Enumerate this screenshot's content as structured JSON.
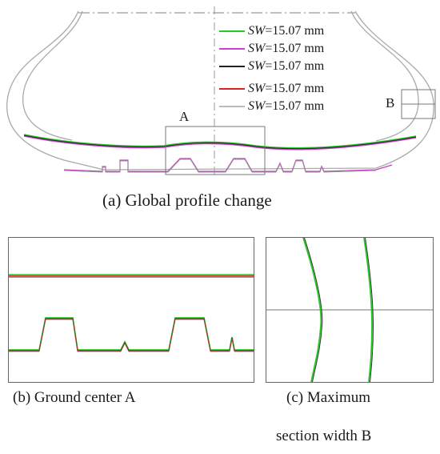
{
  "figure": {
    "panel_a": {
      "caption": "(a) Global profile change",
      "region_a_label": "A",
      "region_b_label": "B",
      "legend": [
        {
          "label_var": "SW",
          "label_rest": "=15.07 mm",
          "color": "#22cc22"
        },
        {
          "label_var": "SW",
          "label_rest": "=15.07 mm",
          "color": "#d040d0"
        },
        {
          "label_var": "SW",
          "label_rest": "=15.07 mm",
          "color": "#222222"
        },
        {
          "label_var": "SW",
          "label_rest": "=15.07 mm",
          "color": "#dd2222"
        },
        {
          "label_var": "SW",
          "label_rest": "=15.07 mm",
          "color": "#bbbbbb"
        }
      ]
    },
    "panel_b": {
      "caption": "(b) Ground center A"
    },
    "panel_c": {
      "caption_line1": "(c) Maximum",
      "caption_line2": "section width B"
    },
    "colors": {
      "green": "#22cc22",
      "magenta": "#d040d0",
      "black": "#222222",
      "red": "#dd2222",
      "gray": "#bbbbbb",
      "frame": "#666666"
    }
  }
}
